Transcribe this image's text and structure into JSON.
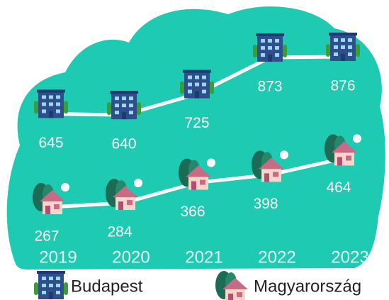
{
  "chart_data": {
    "type": "line",
    "categories": [
      "2019",
      "2020",
      "2021",
      "2022",
      "2023"
    ],
    "series": [
      {
        "name": "Budapest",
        "color": "#ffffff",
        "values": [
          645,
          640,
          725,
          873,
          876
        ]
      },
      {
        "name": "Magyarország",
        "color": "#ffffff",
        "values": [
          267,
          284,
          366,
          398,
          464
        ]
      }
    ]
  }
}
